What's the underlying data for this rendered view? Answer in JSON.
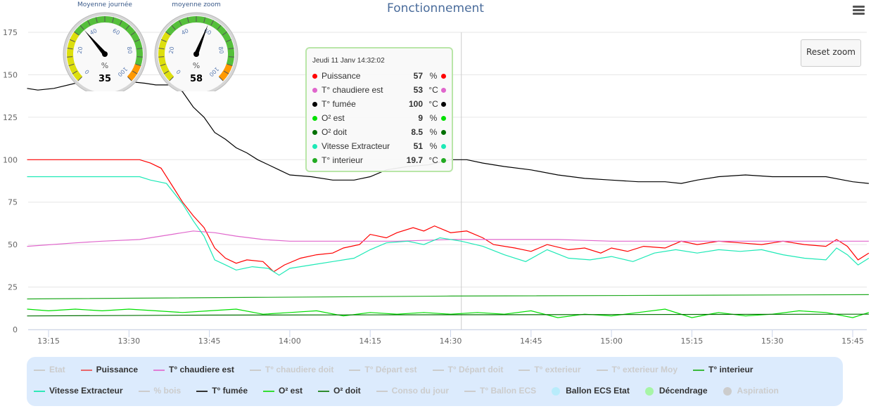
{
  "title": "Fonctionnement",
  "reset_zoom": "Reset zoom",
  "gauges": [
    {
      "title": "Moyenne journée",
      "value": 35,
      "unit": "%"
    },
    {
      "title": "moyenne zoom",
      "value": 58,
      "unit": "%"
    }
  ],
  "gauge_ticks": [
    "0",
    "20",
    "40",
    "60",
    "80",
    "100"
  ],
  "tooltip": {
    "header": "Jeudi 11 Janv 14:32:02",
    "rows": [
      {
        "name": "Puissance",
        "value": "57",
        "unit": "%",
        "color": "#ff0000"
      },
      {
        "name": "T° chaudiere est",
        "value": "53",
        "unit": "°C",
        "color": "#e066cc"
      },
      {
        "name": "T° fumée",
        "value": "100",
        "unit": "°C",
        "color": "#000000"
      },
      {
        "name": "O² est",
        "value": "9",
        "unit": "%",
        "color": "#00e000"
      },
      {
        "name": "O² doit",
        "value": "8.5",
        "unit": "%",
        "color": "#007000"
      },
      {
        "name": "Vitesse Extracteur",
        "value": "51",
        "unit": "%",
        "color": "#1de9b6"
      },
      {
        "name": "T° interieur",
        "value": "19.7",
        "unit": "°C",
        "color": "#22aa22"
      }
    ]
  },
  "legend": [
    {
      "label": "Etat",
      "active": false,
      "color": "#ccc",
      "row": 0
    },
    {
      "label": "Puissance",
      "active": true,
      "color": "#e8676b",
      "row": 0
    },
    {
      "label": "T° chaudiere est",
      "active": true,
      "color": "#e07ed6",
      "row": 0
    },
    {
      "label": "T° chaudiere doit",
      "active": false,
      "color": "#ccc",
      "row": 0
    },
    {
      "label": "T° Départ est",
      "active": false,
      "color": "#ccc",
      "row": 0
    },
    {
      "label": "T° Départ doit",
      "active": false,
      "color": "#ccc",
      "row": 0
    },
    {
      "label": "T° exterieur",
      "active": false,
      "color": "#ccc",
      "row": 0
    },
    {
      "label": "T° exterieur Moy",
      "active": false,
      "color": "#ccc",
      "row": 0
    },
    {
      "label": "T° interieur",
      "active": true,
      "color": "#3cb93c",
      "row": 0
    },
    {
      "label": "Vitesse Extracteur",
      "active": true,
      "color": "#2ee8b8",
      "row": 1
    },
    {
      "label": "% bois",
      "active": false,
      "color": "#ccc",
      "row": 1
    },
    {
      "label": "T° fumée",
      "active": true,
      "color": "#333",
      "row": 1
    },
    {
      "label": "O² est",
      "active": true,
      "color": "#33dd33",
      "row": 1
    },
    {
      "label": "O² doit",
      "active": true,
      "color": "#2e8b2e",
      "row": 1
    },
    {
      "label": "Conso du jour",
      "active": false,
      "color": "#ccc",
      "row": 1
    },
    {
      "label": "T° Ballon ECS",
      "active": false,
      "color": "#ccc",
      "row": 1
    },
    {
      "label": "Ballon ECS Etat",
      "active": true,
      "color": "#b8ecfb",
      "row": 1,
      "marker": "circle"
    },
    {
      "label": "Décendrage",
      "active": true,
      "color": "#a6f5a6",
      "row": 1,
      "marker": "circle"
    },
    {
      "label": "Aspiration",
      "active": false,
      "color": "#ccc",
      "row": 1,
      "marker": "circle"
    }
  ],
  "chart_data": {
    "type": "line",
    "title": "Fonctionnement",
    "xlim": [
      "13:11",
      "15:48"
    ],
    "ylim": [
      0,
      175
    ],
    "y_ticks": [
      0,
      25,
      50,
      75,
      100,
      125,
      150,
      175
    ],
    "x_ticks": [
      "13:15",
      "13:30",
      "13:45",
      "14:00",
      "14:15",
      "14:30",
      "14:45",
      "15:00",
      "15:15",
      "15:30",
      "15:45"
    ],
    "crosshair": "14:32",
    "grid": true,
    "series": [
      {
        "name": "T° fumée",
        "color": "#000000",
        "points": [
          [
            "13:11",
            142
          ],
          [
            "13:13",
            141
          ],
          [
            "13:16",
            142
          ],
          [
            "13:20",
            145
          ],
          [
            "13:25",
            146
          ],
          [
            "13:30",
            146
          ],
          [
            "13:33",
            145
          ],
          [
            "13:35",
            144
          ],
          [
            "13:38",
            144
          ],
          [
            "13:40",
            140
          ],
          [
            "13:42",
            131
          ],
          [
            "13:44",
            125
          ],
          [
            "13:46",
            116
          ],
          [
            "13:48",
            112
          ],
          [
            "13:50",
            107
          ],
          [
            "13:52",
            104
          ],
          [
            "13:54",
            100
          ],
          [
            "13:56",
            97
          ],
          [
            "13:58",
            94
          ],
          [
            "14:00",
            91
          ],
          [
            "14:04",
            90
          ],
          [
            "14:08",
            88
          ],
          [
            "14:12",
            88
          ],
          [
            "14:15",
            90
          ],
          [
            "14:18",
            94
          ],
          [
            "14:22",
            96
          ],
          [
            "14:26",
            97
          ],
          [
            "14:30",
            100
          ],
          [
            "14:33",
            100
          ],
          [
            "14:36",
            98
          ],
          [
            "14:40",
            96
          ],
          [
            "14:45",
            94
          ],
          [
            "14:50",
            91
          ],
          [
            "14:55",
            89
          ],
          [
            "15:00",
            88
          ],
          [
            "15:05",
            87
          ],
          [
            "15:10",
            87
          ],
          [
            "15:13",
            86
          ],
          [
            "15:16",
            88
          ],
          [
            "15:20",
            90
          ],
          [
            "15:25",
            91
          ],
          [
            "15:30",
            90
          ],
          [
            "15:35",
            90
          ],
          [
            "15:40",
            90
          ],
          [
            "15:45",
            87
          ],
          [
            "15:48",
            86
          ]
        ]
      },
      {
        "name": "Puissance",
        "color": "#ff0000",
        "points": [
          [
            "13:11",
            100
          ],
          [
            "13:32",
            100
          ],
          [
            "13:34",
            98
          ],
          [
            "13:36",
            95
          ],
          [
            "13:38",
            85
          ],
          [
            "13:40",
            75
          ],
          [
            "13:42",
            67
          ],
          [
            "13:44",
            60
          ],
          [
            "13:46",
            48
          ],
          [
            "13:48",
            42
          ],
          [
            "13:50",
            39
          ],
          [
            "13:52",
            41
          ],
          [
            "13:55",
            40
          ],
          [
            "13:57",
            34
          ],
          [
            "13:59",
            38
          ],
          [
            "14:02",
            42
          ],
          [
            "14:05",
            44
          ],
          [
            "14:08",
            45
          ],
          [
            "14:10",
            48
          ],
          [
            "14:13",
            50
          ],
          [
            "14:15",
            56
          ],
          [
            "14:18",
            54
          ],
          [
            "14:20",
            57
          ],
          [
            "14:23",
            60
          ],
          [
            "14:25",
            58
          ],
          [
            "14:27",
            61
          ],
          [
            "14:30",
            57
          ],
          [
            "14:33",
            58
          ],
          [
            "14:36",
            54
          ],
          [
            "14:38",
            50
          ],
          [
            "14:42",
            48
          ],
          [
            "14:45",
            46
          ],
          [
            "14:48",
            50
          ],
          [
            "14:52",
            47
          ],
          [
            "14:55",
            48
          ],
          [
            "14:58",
            45
          ],
          [
            "15:00",
            48
          ],
          [
            "15:03",
            46
          ],
          [
            "15:06",
            49
          ],
          [
            "15:10",
            48
          ],
          [
            "15:13",
            52
          ],
          [
            "15:16",
            50
          ],
          [
            "15:20",
            52
          ],
          [
            "15:24",
            51
          ],
          [
            "15:28",
            50
          ],
          [
            "15:32",
            52
          ],
          [
            "15:36",
            50
          ],
          [
            "15:40",
            49
          ],
          [
            "15:42",
            53
          ],
          [
            "15:44",
            49
          ],
          [
            "15:46",
            41
          ],
          [
            "15:48",
            45
          ]
        ]
      },
      {
        "name": "T° chaudiere est",
        "color": "#e066cc",
        "points": [
          [
            "13:11",
            49
          ],
          [
            "13:20",
            51
          ],
          [
            "13:25",
            52
          ],
          [
            "13:32",
            53
          ],
          [
            "13:38",
            56
          ],
          [
            "13:42",
            58
          ],
          [
            "13:46",
            57
          ],
          [
            "13:50",
            55
          ],
          [
            "13:55",
            53
          ],
          [
            "14:00",
            52
          ],
          [
            "14:20",
            52
          ],
          [
            "14:30",
            53
          ],
          [
            "14:50",
            53
          ],
          [
            "15:00",
            52
          ],
          [
            "15:48",
            52
          ]
        ]
      },
      {
        "name": "Vitesse Extracteur",
        "color": "#1de9b6",
        "points": [
          [
            "13:11",
            90
          ],
          [
            "13:32",
            90
          ],
          [
            "13:34",
            88
          ],
          [
            "13:37",
            86
          ],
          [
            "13:40",
            74
          ],
          [
            "13:42",
            64
          ],
          [
            "13:44",
            55
          ],
          [
            "13:46",
            41
          ],
          [
            "13:48",
            38
          ],
          [
            "13:50",
            35
          ],
          [
            "13:53",
            37
          ],
          [
            "13:56",
            36
          ],
          [
            "13:58",
            32
          ],
          [
            "14:00",
            36
          ],
          [
            "14:04",
            38
          ],
          [
            "14:08",
            40
          ],
          [
            "14:12",
            42
          ],
          [
            "14:15",
            47
          ],
          [
            "14:18",
            51
          ],
          [
            "14:22",
            52
          ],
          [
            "14:25",
            50
          ],
          [
            "14:28",
            54
          ],
          [
            "14:32",
            52
          ],
          [
            "14:36",
            49
          ],
          [
            "14:40",
            44
          ],
          [
            "14:44",
            40
          ],
          [
            "14:48",
            47
          ],
          [
            "14:52",
            42
          ],
          [
            "14:56",
            41
          ],
          [
            "15:00",
            43
          ],
          [
            "15:04",
            40
          ],
          [
            "15:08",
            45
          ],
          [
            "15:12",
            47
          ],
          [
            "15:16",
            45
          ],
          [
            "15:20",
            47
          ],
          [
            "15:24",
            46
          ],
          [
            "15:28",
            47
          ],
          [
            "15:32",
            44
          ],
          [
            "15:36",
            42
          ],
          [
            "15:40",
            41
          ],
          [
            "15:42",
            48
          ],
          [
            "15:44",
            44
          ],
          [
            "15:46",
            38
          ],
          [
            "15:48",
            42
          ]
        ]
      },
      {
        "name": "O² est",
        "color": "#00e000",
        "points": [
          [
            "13:11",
            12
          ],
          [
            "13:15",
            11
          ],
          [
            "13:20",
            12
          ],
          [
            "13:25",
            11
          ],
          [
            "13:30",
            12
          ],
          [
            "13:35",
            11
          ],
          [
            "13:40",
            10
          ],
          [
            "13:45",
            11
          ],
          [
            "13:50",
            12
          ],
          [
            "13:55",
            9
          ],
          [
            "14:00",
            10
          ],
          [
            "14:05",
            11
          ],
          [
            "14:10",
            8
          ],
          [
            "14:15",
            10
          ],
          [
            "14:20",
            9
          ],
          [
            "14:25",
            10
          ],
          [
            "14:30",
            9
          ],
          [
            "14:35",
            10
          ],
          [
            "14:40",
            9
          ],
          [
            "14:45",
            11
          ],
          [
            "14:50",
            7
          ],
          [
            "14:55",
            9
          ],
          [
            "15:00",
            8
          ],
          [
            "15:05",
            10
          ],
          [
            "15:10",
            12
          ],
          [
            "15:15",
            7
          ],
          [
            "15:20",
            10
          ],
          [
            "15:25",
            8
          ],
          [
            "15:30",
            9
          ],
          [
            "15:35",
            11
          ],
          [
            "15:40",
            10
          ],
          [
            "15:45",
            7
          ],
          [
            "15:48",
            10
          ]
        ]
      },
      {
        "name": "O² doit",
        "color": "#007000",
        "points": [
          [
            "13:11",
            8
          ],
          [
            "13:45",
            8.5
          ],
          [
            "15:48",
            9
          ]
        ]
      },
      {
        "name": "T° interieur",
        "color": "#22aa22",
        "points": [
          [
            "13:11",
            18
          ],
          [
            "14:30",
            19.7
          ],
          [
            "15:48",
            20.5
          ]
        ]
      }
    ]
  }
}
